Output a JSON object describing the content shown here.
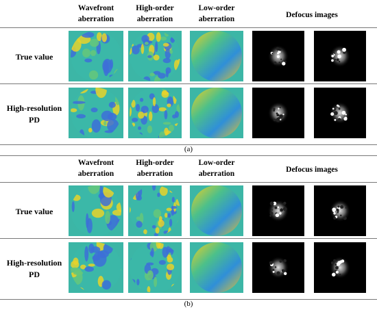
{
  "panels": [
    {
      "headers": [
        "Wavefront aberration",
        "High-order aberration",
        "Low-order aberration",
        "Defocus images"
      ],
      "rows": [
        {
          "label": "True value"
        },
        {
          "label": "High-resolution PD"
        }
      ],
      "caption": "(a)"
    },
    {
      "headers": [
        "Wavefront aberration",
        "High-order aberration",
        "Low-order aberration",
        "Defocus images"
      ],
      "rows": [
        {
          "label": "True value"
        },
        {
          "label": "High-resolution PD"
        }
      ],
      "caption": "(b)"
    }
  ]
}
